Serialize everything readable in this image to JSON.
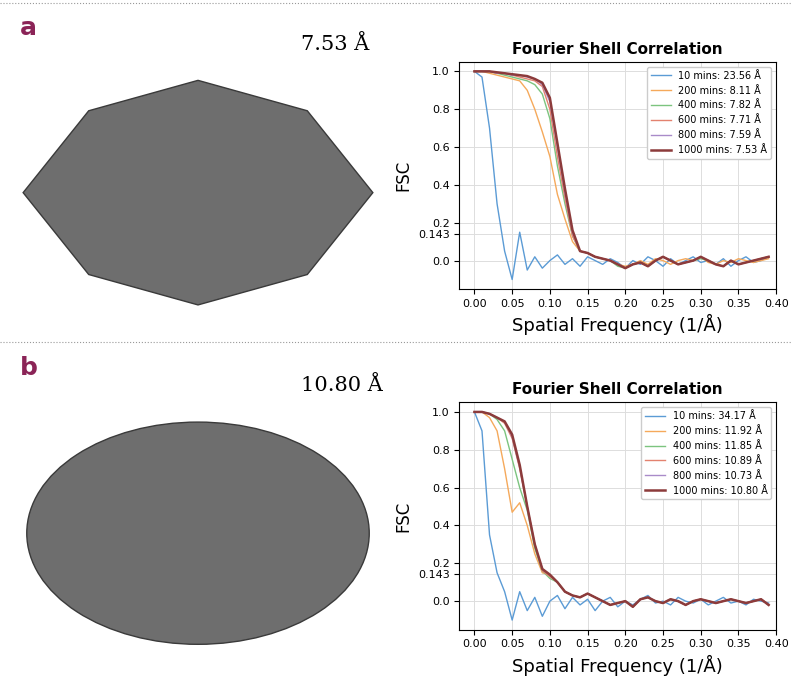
{
  "panels": [
    {
      "label": "a",
      "resolution_text": "7.53 Å"
    },
    {
      "label": "b",
      "resolution_text": "10.80 Å"
    }
  ],
  "chart_data": [
    {
      "type": "line",
      "title": "Fourier Shell Correlation",
      "x_label": "Spatial Frequency (1/Å)",
      "y_label": "FSC",
      "grid": true,
      "legend": "upper right",
      "xlim": [
        -0.02,
        0.4
      ],
      "ylim": [
        -0.15,
        1.05
      ],
      "xticks": [
        {
          "value": 0,
          "label": "0.00"
        },
        {
          "value": 0.05,
          "label": "0.05"
        },
        {
          "value": 0.1,
          "label": "0.10"
        },
        {
          "value": 0.15,
          "label": "0.15"
        },
        {
          "value": 0.2,
          "label": "0.20"
        },
        {
          "value": 0.25,
          "label": "0.25"
        },
        {
          "value": 0.3,
          "label": "0.30"
        },
        {
          "value": 0.35,
          "label": "0.35"
        },
        {
          "value": 0.4,
          "label": "0.40"
        }
      ],
      "yticks": [
        {
          "value": 0,
          "label": "0.0"
        },
        0.143,
        0.2,
        0.4,
        0.6,
        0.8,
        {
          "value": 1,
          "label": "1.0"
        }
      ],
      "x": [
        0.0,
        0.01,
        0.02,
        0.03,
        0.04,
        0.05,
        0.06,
        0.07,
        0.08,
        0.09,
        0.1,
        0.11,
        0.12,
        0.13,
        0.14,
        0.15,
        0.16,
        0.17,
        0.18,
        0.19,
        0.2,
        0.21,
        0.22,
        0.23,
        0.24,
        0.25,
        0.26,
        0.27,
        0.28,
        0.29,
        0.3,
        0.31,
        0.32,
        0.33,
        0.34,
        0.35,
        0.36,
        0.37,
        0.38,
        0.39
      ],
      "series": [
        {
          "name": "10 mins: 23.56 Å",
          "color": "#5b9bd5",
          "values": [
            1.0,
            0.97,
            0.7,
            0.3,
            0.05,
            -0.1,
            0.15,
            -0.05,
            0.02,
            -0.04,
            0.0,
            0.03,
            -0.02,
            0.01,
            -0.03,
            0.02,
            0.0,
            -0.02,
            0.01,
            -0.01,
            -0.04,
            0.0,
            -0.02,
            0.02,
            0.0,
            -0.03,
            0.01,
            -0.02,
            0.0,
            0.02,
            -0.01,
            0.0,
            -0.02,
            0.01,
            -0.03,
            0.0,
            0.02,
            -0.01,
            0.0,
            0.02
          ]
        },
        {
          "name": "200 mins: 8.11 Å",
          "color": "#f5a95b",
          "values": [
            1.0,
            1.0,
            0.99,
            0.98,
            0.97,
            0.96,
            0.95,
            0.9,
            0.8,
            0.68,
            0.55,
            0.35,
            0.22,
            0.1,
            0.05,
            0.04,
            0.02,
            0.01,
            0.0,
            -0.02,
            -0.03,
            -0.02,
            0.0,
            -0.02,
            0.01,
            0.0,
            -0.02,
            0.0,
            0.01,
            0.0,
            0.02,
            -0.01,
            -0.02,
            0.0,
            -0.01,
            0.01,
            0.0,
            -0.01,
            0.0,
            0.01
          ]
        },
        {
          "name": "400 mins: 7.82 Å",
          "color": "#7cc47f",
          "values": [
            1.0,
            1.0,
            1.0,
            0.99,
            0.98,
            0.97,
            0.96,
            0.95,
            0.93,
            0.88,
            0.75,
            0.5,
            0.3,
            0.13,
            0.05,
            0.04,
            0.02,
            0.01,
            0.0,
            -0.03,
            -0.04,
            -0.02,
            -0.01,
            -0.03,
            0.0,
            0.02,
            0.0,
            -0.02,
            -0.01,
            0.0,
            0.01,
            0.0,
            -0.02,
            -0.03,
            0.0,
            -0.02,
            -0.01,
            0.0,
            0.01,
            0.02
          ]
        },
        {
          "name": "600 mins: 7.71 Å",
          "color": "#e3826f",
          "values": [
            1.0,
            1.0,
            1.0,
            0.99,
            0.99,
            0.98,
            0.97,
            0.96,
            0.95,
            0.92,
            0.8,
            0.55,
            0.33,
            0.13,
            0.05,
            0.04,
            0.02,
            0.01,
            0.0,
            -0.02,
            -0.04,
            -0.02,
            -0.01,
            -0.03,
            0.0,
            0.02,
            0.0,
            -0.02,
            -0.01,
            0.0,
            0.02,
            0.0,
            -0.02,
            -0.03,
            0.0,
            -0.02,
            -0.01,
            0.0,
            0.01,
            0.02
          ]
        },
        {
          "name": "800 mins: 7.59 Å",
          "color": "#a98bc9",
          "values": [
            1.0,
            1.0,
            1.0,
            0.99,
            0.99,
            0.98,
            0.98,
            0.97,
            0.96,
            0.93,
            0.84,
            0.6,
            0.36,
            0.15,
            0.05,
            0.04,
            0.02,
            0.01,
            0.0,
            -0.02,
            -0.04,
            -0.02,
            -0.01,
            -0.03,
            0.0,
            0.02,
            0.0,
            -0.02,
            -0.01,
            0.0,
            0.02,
            0.0,
            -0.02,
            -0.03,
            0.0,
            -0.02,
            -0.01,
            0.0,
            0.01,
            0.02
          ]
        },
        {
          "name": "1000 mins: 7.53 Å",
          "color": "#8c3b3b",
          "values": [
            1.0,
            1.0,
            1.0,
            0.995,
            0.99,
            0.985,
            0.98,
            0.975,
            0.96,
            0.94,
            0.86,
            0.62,
            0.38,
            0.16,
            0.05,
            0.04,
            0.02,
            0.01,
            0.0,
            -0.02,
            -0.04,
            -0.02,
            -0.01,
            -0.03,
            0.0,
            0.02,
            0.0,
            -0.02,
            -0.01,
            0.0,
            0.02,
            0.0,
            -0.02,
            -0.03,
            0.0,
            -0.02,
            -0.01,
            0.0,
            0.01,
            0.02
          ]
        }
      ]
    },
    {
      "type": "line",
      "title": "Fourier Shell Correlation",
      "x_label": "Spatial Frequency (1/Å)",
      "y_label": "FSC",
      "grid": true,
      "legend": "upper right",
      "xlim": [
        -0.02,
        0.4
      ],
      "ylim": [
        -0.15,
        1.05
      ],
      "xticks": [
        {
          "value": 0,
          "label": "0.00"
        },
        {
          "value": 0.05,
          "label": "0.05"
        },
        {
          "value": 0.1,
          "label": "0.10"
        },
        {
          "value": 0.15,
          "label": "0.15"
        },
        {
          "value": 0.2,
          "label": "0.20"
        },
        {
          "value": 0.25,
          "label": "0.25"
        },
        {
          "value": 0.3,
          "label": "0.30"
        },
        {
          "value": 0.35,
          "label": "0.35"
        },
        {
          "value": 0.4,
          "label": "0.40"
        }
      ],
      "yticks": [
        {
          "value": 0,
          "label": "0.0"
        },
        0.143,
        0.2,
        0.4,
        0.6,
        0.8,
        {
          "value": 1,
          "label": "1.0"
        }
      ],
      "x": [
        0.0,
        0.01,
        0.02,
        0.03,
        0.04,
        0.05,
        0.06,
        0.07,
        0.08,
        0.09,
        0.1,
        0.11,
        0.12,
        0.13,
        0.14,
        0.15,
        0.16,
        0.17,
        0.18,
        0.19,
        0.2,
        0.21,
        0.22,
        0.23,
        0.24,
        0.25,
        0.26,
        0.27,
        0.28,
        0.29,
        0.3,
        0.31,
        0.32,
        0.33,
        0.34,
        0.35,
        0.36,
        0.37,
        0.38,
        0.39
      ],
      "series": [
        {
          "name": "10 mins: 34.17 Å",
          "color": "#5b9bd5",
          "values": [
            1.0,
            0.9,
            0.35,
            0.15,
            0.05,
            -0.1,
            0.05,
            -0.05,
            0.02,
            -0.08,
            0.0,
            0.03,
            -0.04,
            0.02,
            -0.02,
            0.01,
            -0.05,
            0.0,
            0.02,
            -0.03,
            0.0,
            -0.02,
            0.01,
            0.03,
            -0.01,
            0.0,
            -0.02,
            0.02,
            0.0,
            -0.01,
            0.01,
            -0.02,
            0.0,
            0.02,
            -0.01,
            0.0,
            -0.02,
            0.01,
            0.0,
            -0.01
          ]
        },
        {
          "name": "200 mins: 11.92 Å",
          "color": "#f5a95b",
          "values": [
            1.0,
            1.0,
            0.97,
            0.9,
            0.7,
            0.47,
            0.52,
            0.4,
            0.25,
            0.15,
            0.14,
            0.1,
            0.05,
            0.03,
            0.02,
            0.04,
            0.02,
            0.0,
            -0.02,
            -0.01,
            0.0,
            -0.03,
            0.01,
            0.02,
            0.0,
            -0.01,
            0.01,
            0.0,
            -0.02,
            0.0,
            0.01,
            0.0,
            -0.01,
            0.0,
            0.01,
            0.0,
            -0.01,
            0.0,
            0.01,
            -0.02
          ]
        },
        {
          "name": "400 mins: 11.85 Å",
          "color": "#7cc47f",
          "values": [
            1.0,
            1.0,
            0.99,
            0.96,
            0.9,
            0.75,
            0.6,
            0.48,
            0.28,
            0.16,
            0.12,
            0.1,
            0.05,
            0.03,
            0.02,
            0.04,
            0.02,
            0.0,
            -0.02,
            -0.01,
            0.0,
            -0.03,
            0.01,
            0.02,
            0.0,
            -0.01,
            0.01,
            0.0,
            -0.02,
            0.0,
            0.01,
            0.0,
            -0.01,
            0.0,
            0.01,
            0.0,
            -0.01,
            0.0,
            0.01,
            -0.02
          ]
        },
        {
          "name": "600 mins: 10.89 Å",
          "color": "#e3826f",
          "values": [
            1.0,
            1.0,
            0.99,
            0.97,
            0.94,
            0.86,
            0.7,
            0.5,
            0.3,
            0.16,
            0.13,
            0.1,
            0.05,
            0.03,
            0.02,
            0.04,
            0.02,
            0.0,
            -0.02,
            -0.01,
            0.0,
            -0.03,
            0.01,
            0.02,
            0.0,
            -0.01,
            0.01,
            0.0,
            -0.02,
            0.0,
            0.01,
            0.0,
            -0.01,
            0.0,
            0.01,
            0.0,
            -0.01,
            0.0,
            0.01,
            -0.02
          ]
        },
        {
          "name": "800 mins: 10.73 Å",
          "color": "#a98bc9",
          "values": [
            1.0,
            1.0,
            0.99,
            0.97,
            0.95,
            0.87,
            0.71,
            0.5,
            0.3,
            0.17,
            0.14,
            0.1,
            0.05,
            0.03,
            0.02,
            0.04,
            0.02,
            0.0,
            -0.02,
            -0.01,
            0.0,
            -0.03,
            0.01,
            0.02,
            0.0,
            -0.01,
            0.01,
            0.0,
            -0.02,
            0.0,
            0.01,
            0.0,
            -0.01,
            0.0,
            0.01,
            0.0,
            -0.01,
            0.0,
            0.01,
            -0.02
          ]
        },
        {
          "name": "1000 mins: 10.80 Å",
          "color": "#8c3b3b",
          "values": [
            1.0,
            1.0,
            0.99,
            0.97,
            0.95,
            0.88,
            0.72,
            0.5,
            0.3,
            0.17,
            0.14,
            0.1,
            0.05,
            0.03,
            0.02,
            0.04,
            0.02,
            0.0,
            -0.02,
            -0.01,
            0.0,
            -0.03,
            0.01,
            0.02,
            0.0,
            -0.01,
            0.01,
            0.0,
            -0.02,
            0.0,
            0.01,
            0.0,
            -0.01,
            0.0,
            0.01,
            0.0,
            -0.01,
            0.0,
            0.01,
            -0.02
          ]
        }
      ]
    }
  ]
}
